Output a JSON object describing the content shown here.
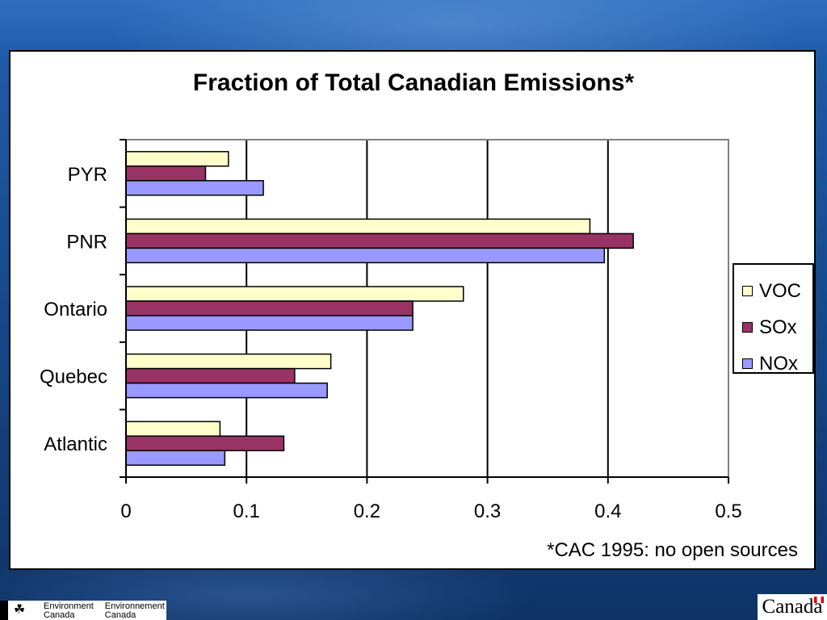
{
  "slide": {
    "title": "Fraction of Total Canadian Emissions*",
    "footnote": "*CAC 1995: no open sources"
  },
  "footer": {
    "dept_en_1": "Environment",
    "dept_en_2": "Canada",
    "dept_fr_1": "Environnement",
    "dept_fr_2": "Canada",
    "wordmark": "Canada",
    "leaf_icon": "maple-leaf-icon"
  },
  "chart_data": {
    "type": "bar",
    "orientation": "horizontal",
    "title": "Fraction of Total Canadian Emissions*",
    "categories": [
      "PYR",
      "PNR",
      "Ontario",
      "Quebec",
      "Atlantic"
    ],
    "series": [
      {
        "name": "VOC",
        "color": "#ffffcc",
        "values": [
          0.085,
          0.385,
          0.28,
          0.17,
          0.078
        ]
      },
      {
        "name": "SOx",
        "color": "#993366",
        "values": [
          0.066,
          0.421,
          0.238,
          0.14,
          0.131
        ]
      },
      {
        "name": "NOx",
        "color": "#9999ff",
        "values": [
          0.114,
          0.397,
          0.238,
          0.167,
          0.082
        ]
      }
    ],
    "xlim": [
      0,
      0.5
    ],
    "xticks": [
      "0",
      "0.1",
      "0.2",
      "0.3",
      "0.4",
      "0.5"
    ],
    "grid": true,
    "legend_position": "right"
  }
}
